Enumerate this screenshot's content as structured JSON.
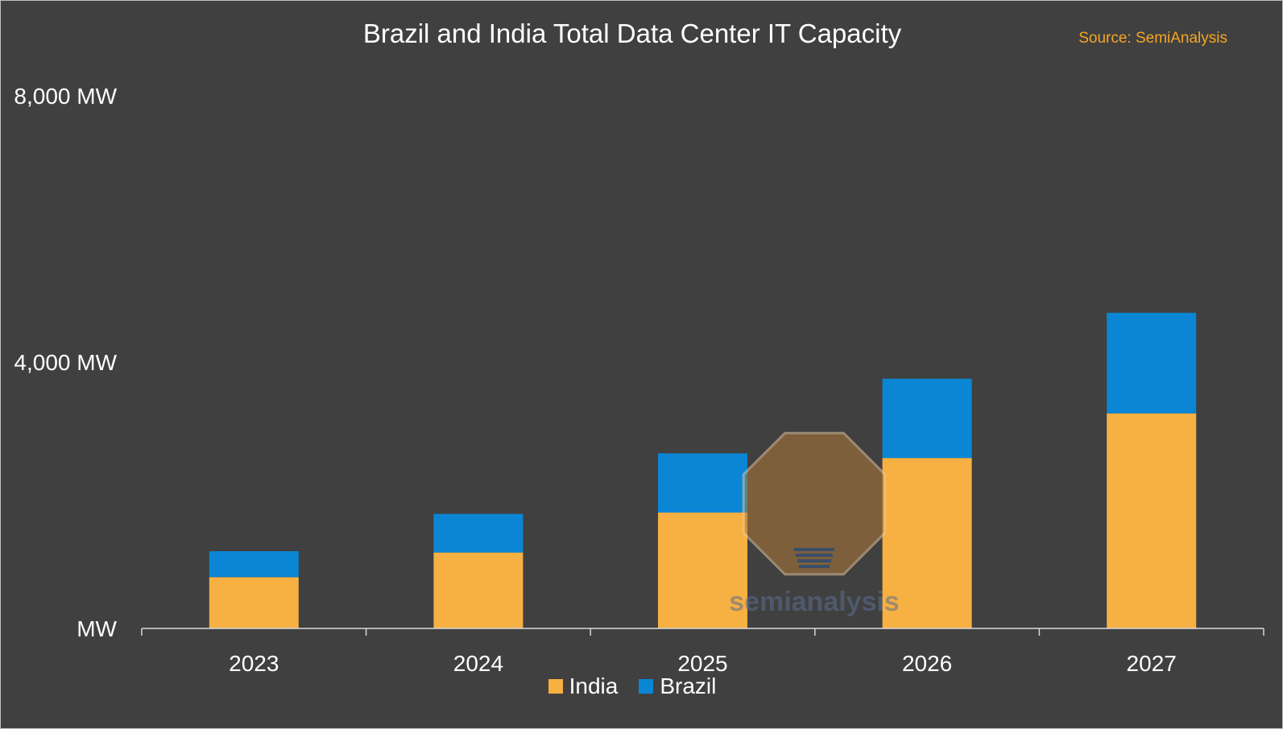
{
  "chart_data": {
    "type": "bar",
    "stacked": true,
    "title": "Brazil and India Total Data Center IT Capacity",
    "source": "Source: SemiAnalysis",
    "categories": [
      "2023",
      "2024",
      "2025",
      "2026",
      "2027"
    ],
    "series": [
      {
        "name": "India",
        "color": "#f7b042",
        "values": [
          770,
          1140,
          1740,
          2560,
          3230
        ]
      },
      {
        "name": "Brazil",
        "color": "#0a86d4",
        "values": [
          390,
          580,
          890,
          1190,
          1510
        ]
      }
    ],
    "ylim": [
      0,
      8000
    ],
    "yticks": [
      0,
      4000,
      8000
    ],
    "ytick_labels": [
      "MW",
      "4,000 MW",
      "8,000 MW"
    ],
    "xlabel": "",
    "ylabel": "",
    "grid": false,
    "legend": "bottom-center",
    "watermark": "semianalysis"
  }
}
